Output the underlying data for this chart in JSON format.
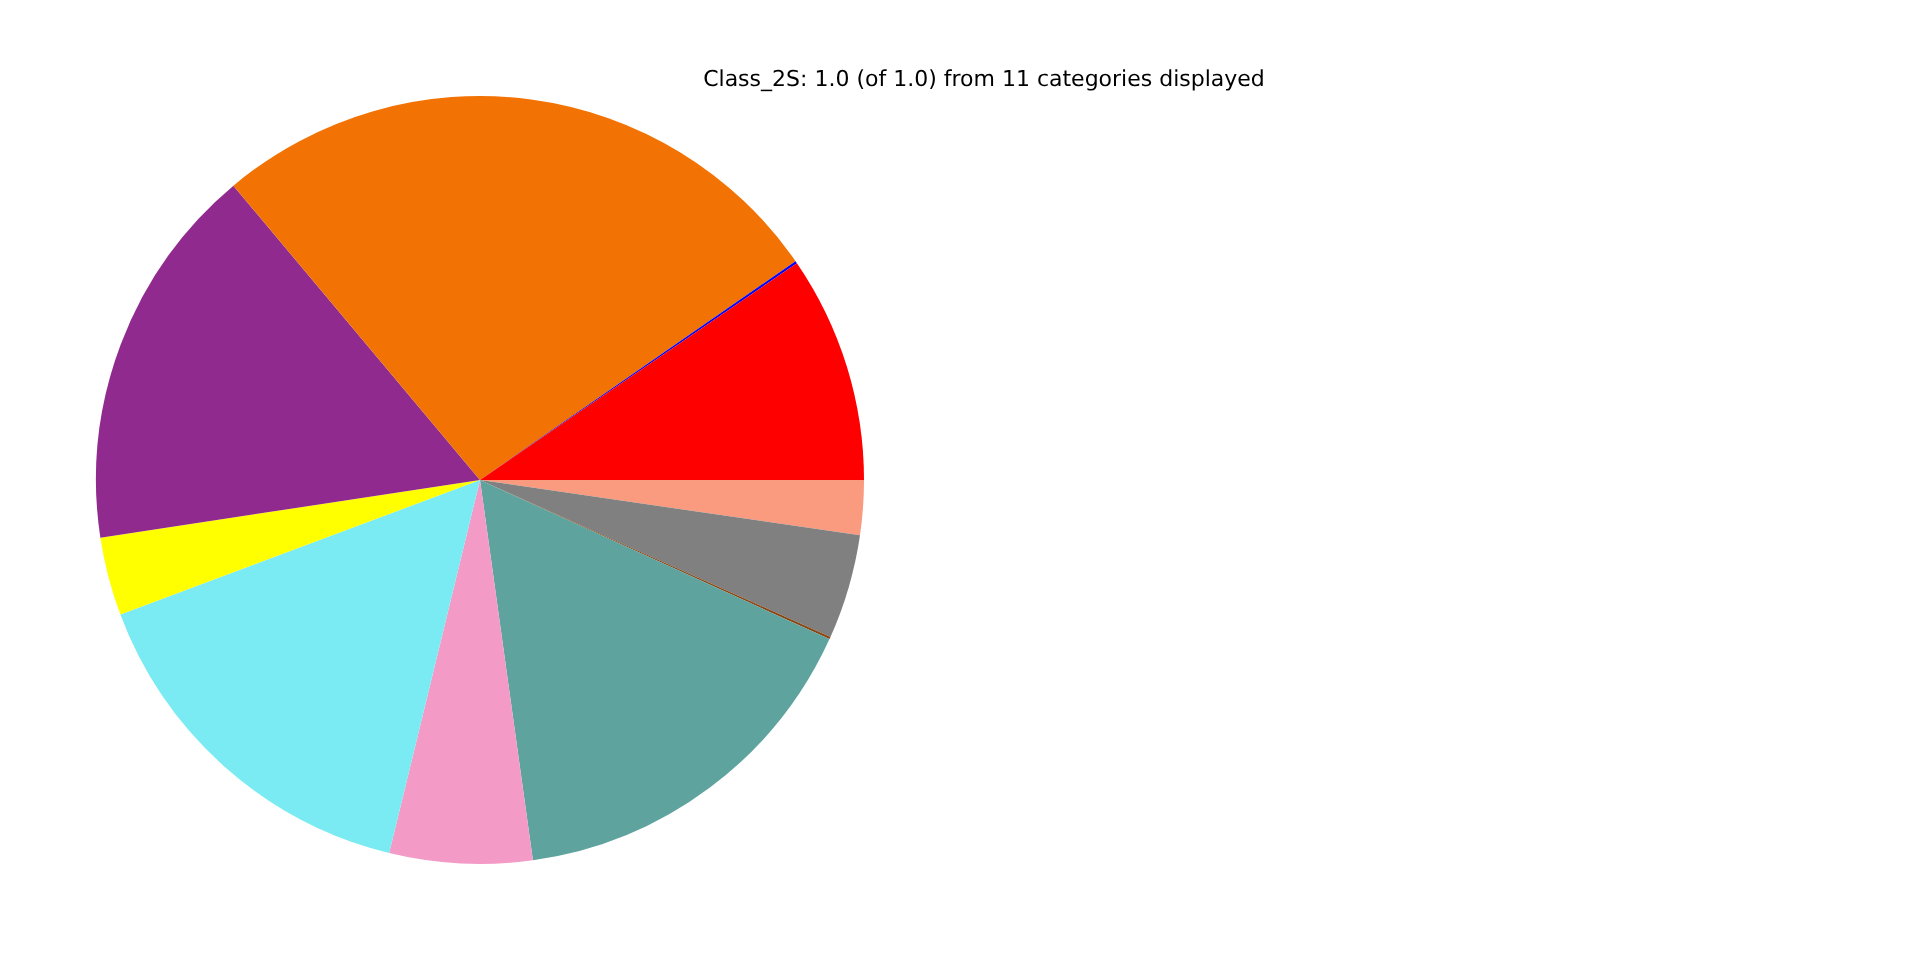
{
  "chart_data": {
    "type": "pie",
    "title": "Class_2S: 1.0 (of 1.0) from 11 categories displayed",
    "categories": [
      null,
      null,
      null,
      null,
      null,
      null,
      null,
      null,
      null,
      null,
      null
    ],
    "values": [
      2.3,
      4.4,
      0.1,
      16.0,
      6.0,
      15.5,
      3.3,
      16.3,
      26.45,
      0.1,
      9.55
    ],
    "colors": [
      "#fa9a7e",
      "#808080",
      "#8b4513",
      "#5fa39f",
      "#f49ac6",
      "#7aebf2",
      "#ffff00",
      "#912a8e",
      "#f27304",
      "#0000ff",
      "#ff0000"
    ]
  }
}
